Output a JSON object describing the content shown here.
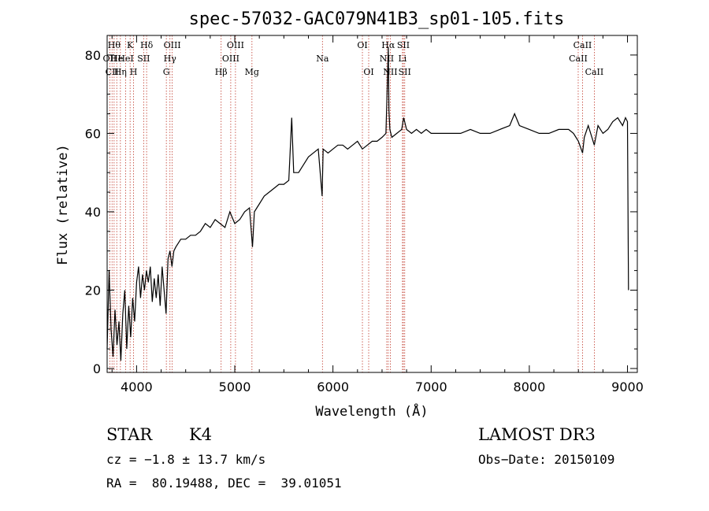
{
  "chart_data": {
    "type": "line",
    "title": "spec-57032-GAC079N41B3_sp01-105.fits",
    "xlabel": "Wavelength (Å)",
    "ylabel": "Flux (relative)",
    "xlim": [
      3700,
      9100
    ],
    "ylim": [
      -1,
      85
    ],
    "x_ticks": [
      4000,
      5000,
      6000,
      7000,
      8000,
      9000
    ],
    "x_tick_labels": [
      "4000",
      "5000",
      "6000",
      "7000",
      "8000",
      "9000"
    ],
    "y_ticks": [
      0,
      20,
      40,
      60,
      80
    ],
    "y_tick_labels": [
      "0",
      "20",
      "40",
      "60",
      "80"
    ],
    "line_color": "#000000",
    "marker_color": "#c0392b",
    "series": [
      {
        "name": "flux",
        "x": [
          3700,
          3720,
          3740,
          3760,
          3780,
          3800,
          3820,
          3840,
          3860,
          3880,
          3900,
          3920,
          3940,
          3960,
          3980,
          4000,
          4020,
          4040,
          4060,
          4080,
          4100,
          4120,
          4140,
          4160,
          4180,
          4200,
          4220,
          4240,
          4260,
          4280,
          4300,
          4320,
          4340,
          4360,
          4380,
          4400,
          4450,
          4500,
          4550,
          4600,
          4650,
          4700,
          4750,
          4800,
          4850,
          4900,
          4950,
          5000,
          5050,
          5100,
          5150,
          5180,
          5200,
          5250,
          5300,
          5350,
          5400,
          5450,
          5500,
          5550,
          5580,
          5600,
          5650,
          5700,
          5750,
          5800,
          5850,
          5890,
          5900,
          5950,
          6000,
          6050,
          6100,
          6150,
          6200,
          6250,
          6300,
          6350,
          6400,
          6450,
          6500,
          6540,
          6560,
          6564,
          6570,
          6580,
          6600,
          6650,
          6700,
          6720,
          6750,
          6800,
          6850,
          6900,
          6950,
          7000,
          7100,
          7200,
          7300,
          7400,
          7500,
          7600,
          7700,
          7800,
          7850,
          7900,
          8000,
          8100,
          8200,
          8300,
          8400,
          8450,
          8500,
          8542,
          8560,
          8600,
          8662,
          8700,
          8750,
          8800,
          8850,
          8900,
          8950,
          8980,
          9000,
          9010
        ],
        "y": [
          5,
          25,
          10,
          3,
          15,
          6,
          12,
          2,
          14,
          20,
          5,
          16,
          8,
          18,
          12,
          22,
          26,
          18,
          24,
          20,
          25,
          22,
          26,
          17,
          23,
          18,
          24,
          16,
          26,
          20,
          14,
          28,
          30,
          26,
          30,
          31,
          33,
          33,
          34,
          34,
          35,
          37,
          36,
          38,
          37,
          36,
          40,
          37,
          38,
          40,
          41,
          31,
          40,
          42,
          44,
          45,
          46,
          47,
          47,
          48,
          64,
          50,
          50,
          52,
          54,
          55,
          56,
          44,
          56,
          55,
          56,
          57,
          57,
          56,
          57,
          58,
          56,
          57,
          58,
          58,
          59,
          60,
          78,
          82,
          66,
          61,
          59,
          60,
          61,
          64,
          61,
          60,
          61,
          60,
          61,
          60,
          60,
          60,
          60,
          61,
          60,
          60,
          61,
          62,
          65,
          62,
          61,
          60,
          60,
          61,
          61,
          60,
          58,
          55,
          59,
          62,
          57,
          62,
          60,
          61,
          63,
          64,
          62,
          64,
          63,
          20
        ]
      }
    ],
    "markers": [
      {
        "wavelength": 3727,
        "label": "OII",
        "row": 1
      },
      {
        "wavelength": 3750,
        "label": "CII",
        "row": 2
      },
      {
        "wavelength": 3771,
        "label": "Hθ",
        "row": 0
      },
      {
        "wavelength": 3798,
        "label": "He",
        "row": 1
      },
      {
        "wavelength": 3835,
        "label": "Hη",
        "row": 2
      },
      {
        "wavelength": 3889,
        "label": "HeI",
        "row": 1
      },
      {
        "wavelength": 3934,
        "label": "K",
        "row": 0
      },
      {
        "wavelength": 3969,
        "label": "H",
        "row": 2
      },
      {
        "wavelength": 4072,
        "label": "SII",
        "row": 1
      },
      {
        "wavelength": 4102,
        "label": "Hδ",
        "row": 0
      },
      {
        "wavelength": 4303,
        "label": "G",
        "row": 2
      },
      {
        "wavelength": 4340,
        "label": "Hγ",
        "row": 1
      },
      {
        "wavelength": 4363,
        "label": "OIII",
        "row": 0
      },
      {
        "wavelength": 4861,
        "label": "Hβ",
        "row": 2
      },
      {
        "wavelength": 4959,
        "label": "OIII",
        "row": 1
      },
      {
        "wavelength": 5007,
        "label": "OIII",
        "row": 0
      },
      {
        "wavelength": 5175,
        "label": "Mg",
        "row": 2
      },
      {
        "wavelength": 5893,
        "label": "Na",
        "row": 1
      },
      {
        "wavelength": 6300,
        "label": "OI",
        "row": 0
      },
      {
        "wavelength": 6364,
        "label": "OI",
        "row": 2
      },
      {
        "wavelength": 6548,
        "label": "NII",
        "row": 1
      },
      {
        "wavelength": 6563,
        "label": "Hα",
        "row": 0
      },
      {
        "wavelength": 6584,
        "label": "NII",
        "row": 2
      },
      {
        "wavelength": 6708,
        "label": "Li",
        "row": 1
      },
      {
        "wavelength": 6717,
        "label": "SII",
        "row": 0
      },
      {
        "wavelength": 6731,
        "label": "SII",
        "row": 2
      },
      {
        "wavelength": 8498,
        "label": "CaII",
        "row": 1
      },
      {
        "wavelength": 8542,
        "label": "CaII",
        "row": 0
      },
      {
        "wavelength": 8662,
        "label": "CaII",
        "row": 2
      }
    ]
  },
  "info": {
    "class": "STAR",
    "subclass": "K4",
    "survey": "LAMOST DR3",
    "redshift": "cz = −1.8 ± 13.7 km/s",
    "obs_date": "Obs−Date: 20150109",
    "coords": "RA =  80.19488, DEC =  39.01051"
  }
}
